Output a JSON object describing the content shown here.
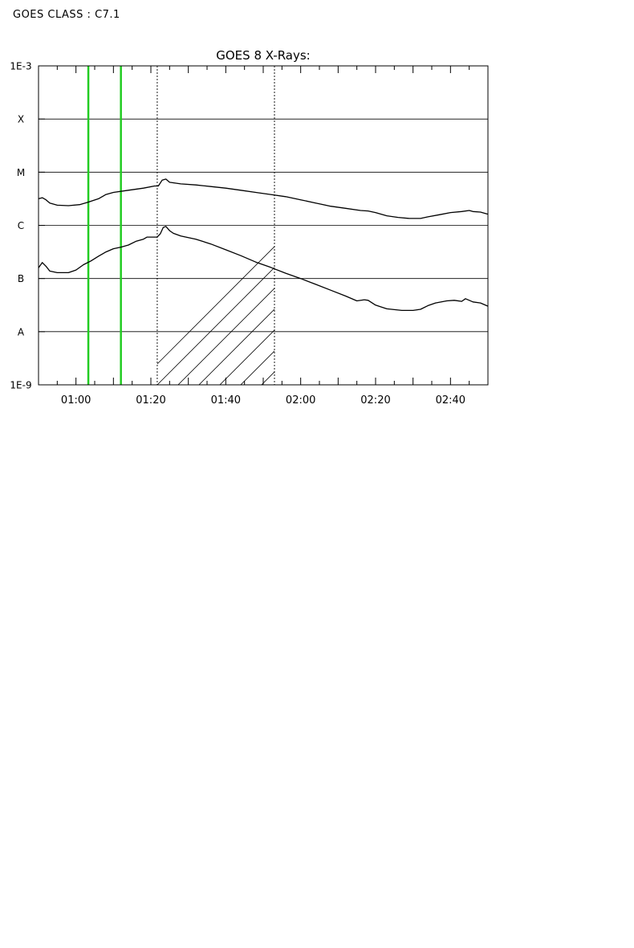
{
  "header": {
    "goes_class": "GOES CLASS : C7.1"
  },
  "chart_data": {
    "type": "line",
    "title": "GOES 8 X-Rays:",
    "xlabel": "",
    "ylabel": "",
    "x_unit": "minutes after 00:00 UT",
    "xlim": [
      50,
      170
    ],
    "ylog10_range": [
      -9,
      -3
    ],
    "x_tick_labels": [
      {
        "t": 60,
        "label": "01:00"
      },
      {
        "t": 80,
        "label": "01:20"
      },
      {
        "t": 100,
        "label": "01:40"
      },
      {
        "t": 120,
        "label": "02:00"
      },
      {
        "t": 140,
        "label": "02:20"
      },
      {
        "t": 160,
        "label": "02:40"
      }
    ],
    "y_tick_labels": [
      {
        "log": -3,
        "label": "1E-3"
      },
      {
        "log": -4,
        "label": "X"
      },
      {
        "log": -5,
        "label": "M"
      },
      {
        "log": -6,
        "label": "C"
      },
      {
        "log": -7,
        "label": "B"
      },
      {
        "log": -8,
        "label": "A"
      },
      {
        "log": -9,
        "label": "1E-9"
      }
    ],
    "grid": "horizontal at each class boundary",
    "vertical_markers": [
      {
        "t": 63.3,
        "color": "#22cc22"
      },
      {
        "t": 72.0,
        "color": "#22cc22"
      }
    ],
    "hatched_interval": {
      "start": 81.7,
      "end": 113.0
    },
    "series": [
      {
        "points": [
          [
            50,
            -5.5
          ],
          [
            51,
            -5.48
          ],
          [
            52,
            -5.52
          ],
          [
            53,
            -5.58
          ],
          [
            55,
            -5.62
          ],
          [
            58,
            -5.63
          ],
          [
            61,
            -5.61
          ],
          [
            63,
            -5.57
          ],
          [
            66,
            -5.5
          ],
          [
            68,
            -5.42
          ],
          [
            70,
            -5.38
          ],
          [
            74,
            -5.34
          ],
          [
            78,
            -5.3
          ],
          [
            81,
            -5.26
          ],
          [
            82,
            -5.26
          ],
          [
            83,
            -5.15
          ],
          [
            84,
            -5.13
          ],
          [
            85,
            -5.19
          ],
          [
            88,
            -5.22
          ],
          [
            92,
            -5.24
          ],
          [
            96,
            -5.27
          ],
          [
            100,
            -5.3
          ],
          [
            104,
            -5.34
          ],
          [
            108,
            -5.38
          ],
          [
            112,
            -5.42
          ],
          [
            116,
            -5.46
          ],
          [
            120,
            -5.52
          ],
          [
            124,
            -5.58
          ],
          [
            128,
            -5.64
          ],
          [
            132,
            -5.68
          ],
          [
            136,
            -5.72
          ],
          [
            138,
            -5.73
          ],
          [
            140,
            -5.76
          ],
          [
            143,
            -5.82
          ],
          [
            146,
            -5.85
          ],
          [
            149,
            -5.87
          ],
          [
            152,
            -5.87
          ],
          [
            154,
            -5.84
          ],
          [
            157,
            -5.8
          ],
          [
            160,
            -5.76
          ],
          [
            163,
            -5.74
          ],
          [
            165,
            -5.72
          ],
          [
            166,
            -5.74
          ],
          [
            168,
            -5.75
          ],
          [
            170,
            -5.79
          ]
        ]
      },
      {
        "points": [
          [
            50,
            -6.8
          ],
          [
            51,
            -6.7
          ],
          [
            52,
            -6.77
          ],
          [
            53,
            -6.86
          ],
          [
            55,
            -6.89
          ],
          [
            58,
            -6.89
          ],
          [
            60,
            -6.84
          ],
          [
            62,
            -6.74
          ],
          [
            64,
            -6.67
          ],
          [
            66,
            -6.58
          ],
          [
            68,
            -6.5
          ],
          [
            70,
            -6.44
          ],
          [
            72,
            -6.41
          ],
          [
            74,
            -6.37
          ],
          [
            76,
            -6.3
          ],
          [
            78,
            -6.26
          ],
          [
            79,
            -6.22
          ],
          [
            81,
            -6.22
          ],
          [
            81.7,
            -6.22
          ],
          [
            82.5,
            -6.16
          ],
          [
            83.3,
            -6.04
          ],
          [
            84,
            -6.02
          ],
          [
            85,
            -6.1
          ],
          [
            86,
            -6.15
          ],
          [
            88,
            -6.2
          ],
          [
            92,
            -6.26
          ],
          [
            96,
            -6.35
          ],
          [
            100,
            -6.46
          ],
          [
            104,
            -6.57
          ],
          [
            108,
            -6.69
          ],
          [
            112,
            -6.79
          ],
          [
            116,
            -6.9
          ],
          [
            120,
            -7.0
          ],
          [
            124,
            -7.11
          ],
          [
            128,
            -7.22
          ],
          [
            132,
            -7.33
          ],
          [
            135,
            -7.42
          ],
          [
            137,
            -7.4
          ],
          [
            138,
            -7.41
          ],
          [
            140,
            -7.5
          ],
          [
            143,
            -7.57
          ],
          [
            147,
            -7.6
          ],
          [
            150,
            -7.6
          ],
          [
            152,
            -7.58
          ],
          [
            154,
            -7.51
          ],
          [
            156,
            -7.46
          ],
          [
            159,
            -7.42
          ],
          [
            161,
            -7.41
          ],
          [
            163,
            -7.43
          ],
          [
            164,
            -7.38
          ],
          [
            165,
            -7.41
          ],
          [
            166,
            -7.44
          ],
          [
            168,
            -7.46
          ],
          [
            170,
            -7.52
          ]
        ]
      }
    ]
  }
}
